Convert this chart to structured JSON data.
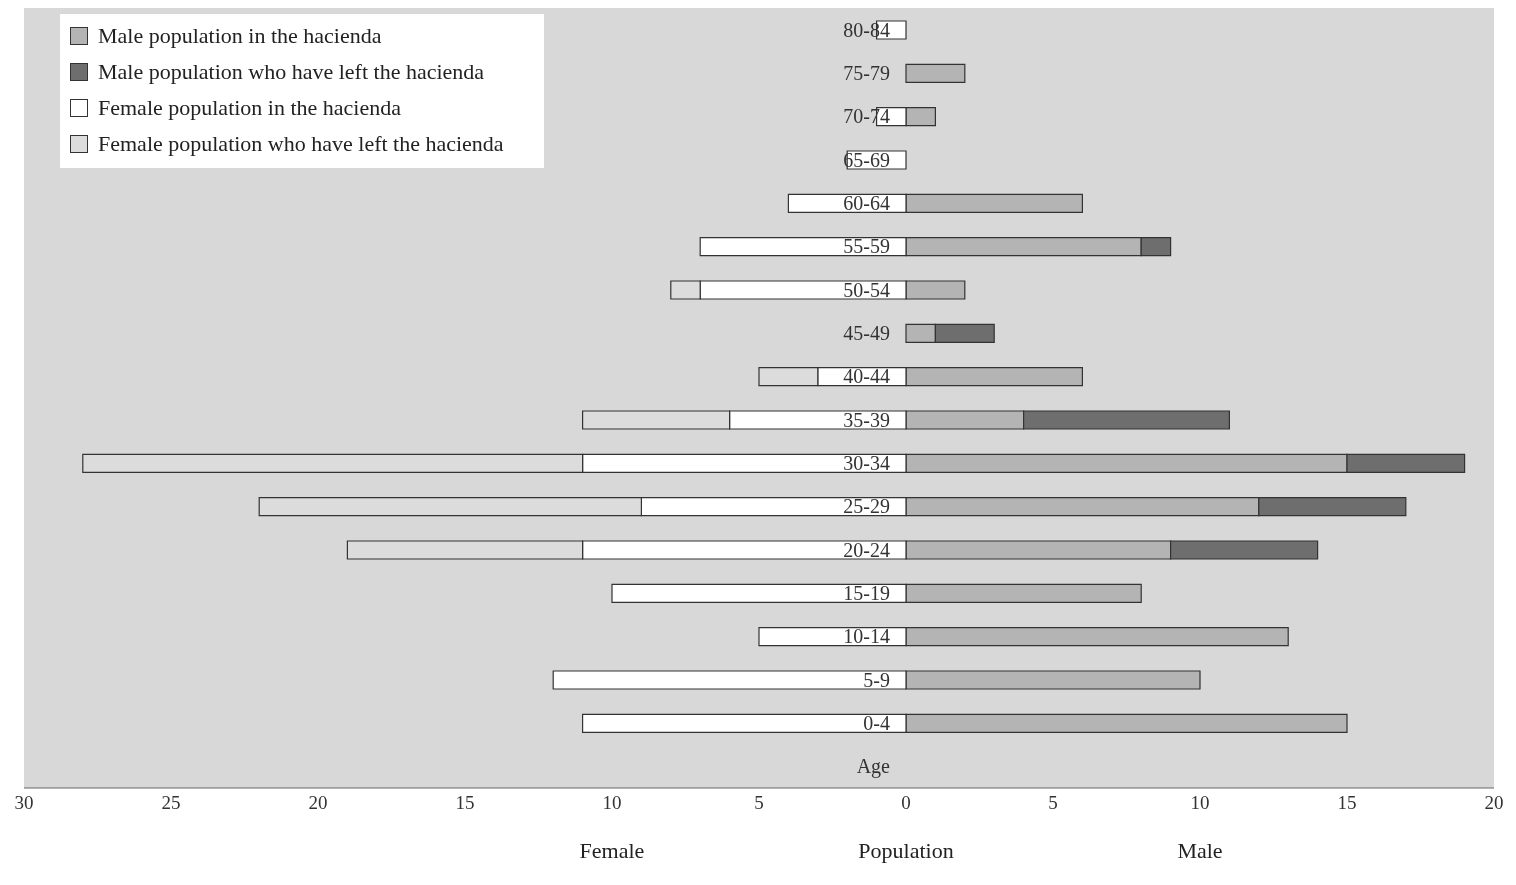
{
  "chart_data": {
    "type": "bar",
    "orientation": "horizontal",
    "stacked": true,
    "xlabel": "Population",
    "ylabel": "Age",
    "annotations": [
      "Female",
      "Male"
    ],
    "categories": [
      "80-84",
      "75-79",
      "70-74",
      "65-69",
      "60-64",
      "55-59",
      "50-54",
      "45-49",
      "40-44",
      "35-39",
      "30-34",
      "25-29",
      "20-24",
      "15-19",
      "10-14",
      "5-9",
      "0-4"
    ],
    "series": [
      {
        "name": "Male population in the hacienda",
        "color": "#b4b4b4",
        "values": [
          null,
          2,
          1,
          null,
          6,
          8,
          2,
          1,
          6,
          4,
          15,
          12,
          9,
          8,
          13,
          10,
          15
        ]
      },
      {
        "name": "Male population who have left the hacienda",
        "color": "#6e6e6e",
        "values": [
          null,
          null,
          null,
          null,
          null,
          1,
          null,
          2,
          null,
          7,
          4,
          5,
          5,
          null,
          null,
          null,
          null
        ]
      },
      {
        "name": "Female population in the hacienda",
        "color": "#ffffff",
        "values": [
          -1,
          null,
          -1,
          -2,
          -4,
          -7,
          -7,
          null,
          -3,
          -6,
          -11,
          -9,
          -11,
          -10,
          -5,
          -12,
          -11
        ]
      },
      {
        "name": "Female population who have left the hacienda",
        "color": "#dcdcdc",
        "values": [
          null,
          null,
          null,
          null,
          null,
          null,
          -1,
          null,
          -2,
          -5,
          -17,
          -13,
          -8,
          null,
          null,
          null,
          null
        ]
      }
    ],
    "xlim": [
      -30,
      20
    ],
    "xticks": [
      {
        "value": -30,
        "label": "30"
      },
      {
        "value": -25,
        "label": "25"
      },
      {
        "value": -20,
        "label": "20"
      },
      {
        "value": -15,
        "label": "15"
      },
      {
        "value": -10,
        "label": "10"
      },
      {
        "value": -5,
        "label": "5"
      },
      0,
      5,
      10,
      15,
      20
    ],
    "grid": false,
    "legend": "top left"
  }
}
